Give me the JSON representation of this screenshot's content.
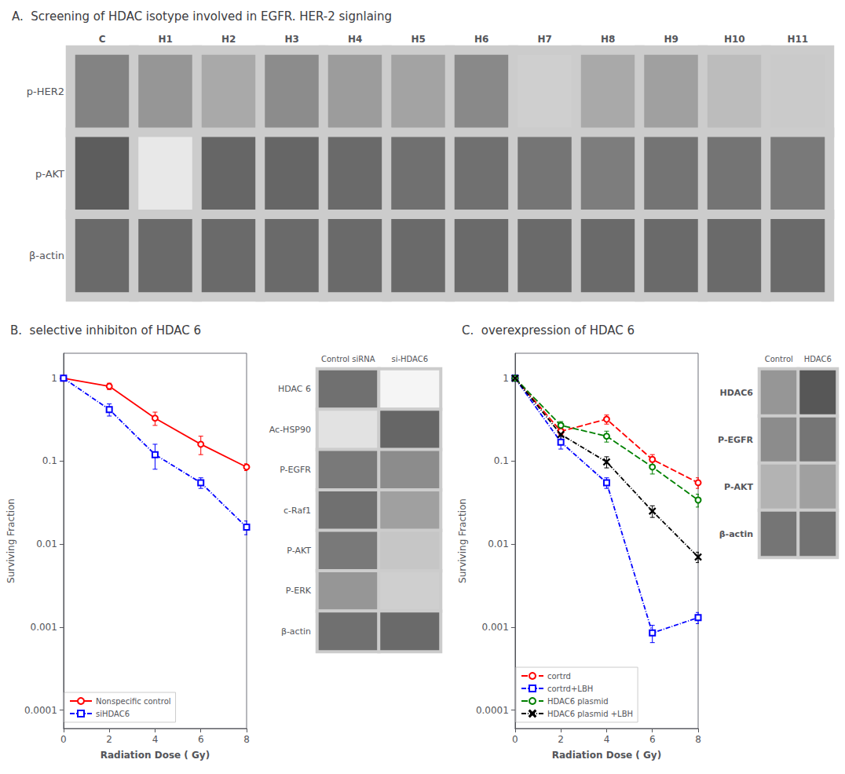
{
  "chart_data": [
    {
      "type": "heatmap",
      "title": "A.  Screening of HDAC isotype involved in EGFR. HER-2 signlaing",
      "categories": [
        "C",
        "H1",
        "H2",
        "H3",
        "H4",
        "H5",
        "H6",
        "H7",
        "H8",
        "H9",
        "H10",
        "H11"
      ],
      "rows": [
        "p-HER2",
        "p-AKT",
        "β-actin"
      ],
      "values": [
        [
          0.65,
          0.55,
          0.45,
          0.6,
          0.52,
          0.48,
          0.62,
          0.25,
          0.45,
          0.5,
          0.35,
          0.28
        ],
        [
          0.85,
          0.12,
          0.8,
          0.8,
          0.78,
          0.75,
          0.75,
          0.72,
          0.68,
          0.73,
          0.73,
          0.7
        ],
        [
          0.78,
          0.78,
          0.78,
          0.78,
          0.78,
          0.78,
          0.78,
          0.78,
          0.78,
          0.78,
          0.78,
          0.78
        ]
      ],
      "zlim": [
        0,
        1
      ]
    },
    {
      "type": "line",
      "title": "B.  selective inhibiton of HDAC 6",
      "xlabel": "Radiation Dose ( Gy)",
      "ylabel": "Surviving Fraction",
      "x": [
        0,
        2,
        4,
        6,
        8
      ],
      "xlim": [
        0,
        8
      ],
      "xticks": [
        0,
        2,
        4,
        6,
        8
      ],
      "ylim": [
        6e-05,
        2.0
      ],
      "yticks": [
        0.0001,
        0.001,
        0.01,
        0.1,
        1
      ],
      "log": "y",
      "grid": false,
      "legend": "lower left",
      "series": [
        {
          "name": "Nonspecific control",
          "color": "red",
          "marker": "circle",
          "line_style": "solid",
          "values": [
            1.0,
            0.8,
            0.33,
            0.16,
            0.085
          ],
          "error": [
            0.04,
            0.07,
            0.06,
            0.04,
            0.008
          ]
        },
        {
          "name": "siHDAC6",
          "color": "blue",
          "marker": "square",
          "line_style": "dashdot",
          "values": [
            1.0,
            0.42,
            0.12,
            0.055,
            0.016
          ],
          "error": [
            0.04,
            0.07,
            0.04,
            0.008,
            0.003
          ]
        }
      ]
    },
    {
      "type": "heatmap",
      "categories": [
        "Control siRNA",
        "si-HDAC6"
      ],
      "rows": [
        "HDAC 6",
        "Ac-HSP90",
        "P-EGFR",
        "c-Raf1",
        "P-AKT",
        "P-ERK",
        "β-actin"
      ],
      "values": [
        [
          0.75,
          0.05
        ],
        [
          0.15,
          0.8
        ],
        [
          0.7,
          0.6
        ],
        [
          0.75,
          0.5
        ],
        [
          0.7,
          0.3
        ],
        [
          0.55,
          0.25
        ],
        [
          0.75,
          0.78
        ]
      ],
      "zlim": [
        0,
        1
      ]
    },
    {
      "type": "line",
      "title": "C.  overexpression of HDAC 6",
      "xlabel": "Radiation Dose ( Gy)",
      "ylabel": "Surviving Fraction",
      "x": [
        0,
        2,
        4,
        6,
        8
      ],
      "xlim": [
        0,
        8
      ],
      "xticks": [
        0,
        2,
        4,
        6,
        8
      ],
      "ylim": [
        6e-05,
        2.0
      ],
      "yticks": [
        0.0001,
        0.001,
        0.01,
        0.1,
        1
      ],
      "log": "y",
      "grid": false,
      "legend": "lower left",
      "series": [
        {
          "name": "cortrd",
          "color": "red",
          "marker": "circle",
          "line_style": "dashed",
          "values": [
            1.0,
            0.23,
            0.32,
            0.105,
            0.055
          ],
          "error": [
            0.02,
            0.02,
            0.04,
            0.015,
            0.008
          ]
        },
        {
          "name": "cortrd+LBH",
          "color": "blue",
          "marker": "square",
          "line_style": "dashdot",
          "values": [
            1.0,
            0.17,
            0.055,
            0.00085,
            0.0013
          ],
          "error": [
            0.02,
            0.03,
            0.008,
            0.0002,
            0.0002
          ]
        },
        {
          "name": "HDAC6 plasmid",
          "color": "green",
          "marker": "circle",
          "line_style": "dashed",
          "values": [
            1.0,
            0.27,
            0.2,
            0.085,
            0.034
          ],
          "error": [
            0.02,
            0.03,
            0.03,
            0.015,
            0.006
          ]
        },
        {
          "name": "HDAC6 plasmid +LBH",
          "color": "black",
          "marker": "x",
          "line_style": "dashdot",
          "values": [
            1.0,
            0.21,
            0.098,
            0.025,
            0.007
          ],
          "error": [
            0.02,
            0.03,
            0.015,
            0.004,
            0.001
          ]
        }
      ]
    },
    {
      "type": "heatmap",
      "categories": [
        "Control",
        "HDAC6"
      ],
      "rows": [
        "HDAC6",
        "P-EGFR",
        "P-AKT",
        "β-actin"
      ],
      "values": [
        [
          0.55,
          0.88
        ],
        [
          0.6,
          0.72
        ],
        [
          0.4,
          0.5
        ],
        [
          0.72,
          0.74
        ]
      ],
      "zlim": [
        0,
        1
      ]
    }
  ]
}
